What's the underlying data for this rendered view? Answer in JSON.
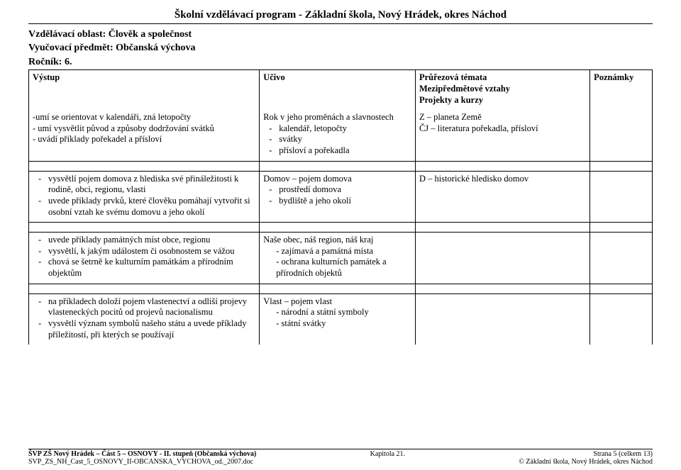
{
  "header": {
    "title": "Školní vzdělávací program  -  Základní škola, Nový Hrádek, okres Náchod"
  },
  "meta": {
    "line1": "Vzdělávací oblast: Člověk a společnost",
    "line2": "Vyučovací předmět: Občanská výchova",
    "line3": "Ročník: 6."
  },
  "cols": {
    "h1": "Výstup",
    "h2": "Učivo",
    "h3a": "Průřezová témata",
    "h3b": "Mezipředmětové vztahy",
    "h3c": "Projekty a kurzy",
    "h4": "Poznámky"
  },
  "r1": {
    "c1a": "-umí se orientovat v kalendáři, zná letopočty",
    "c1b": "- umí vysvětlit původ a způsoby dodržování svátků",
    "c1c": "- uvádí příklady pořekadel a přísloví",
    "c2h": "Rok v jeho proměnách a slavnostech",
    "c2a": "kalendář, letopočty",
    "c2b": "svátky",
    "c2c": "přísloví a pořekadla",
    "c3a": "Z – planeta Země",
    "c3b": "ČJ – literatura pořekadla, přísloví"
  },
  "r2": {
    "c1a": "vysvětlí pojem domova z hlediska své přináležitosti k rodině, obci, regionu, vlasti",
    "c1b": "uvede příklady prvků, které člověku pomáhají vytvořit si osobní vztah ke svému domovu a jeho okolí",
    "c2h": "Domov – pojem domova",
    "c2a": "prostředí domova",
    "c2b": "bydliště a jeho okolí",
    "c3a": "D – historické hledisko domov"
  },
  "r3": {
    "c1a": "uvede příklady památných míst obce, regionu",
    "c1b": "vysvětlí, k jakým událostem či osobnostem se vážou",
    "c1c": "chová se šetrně ke kulturním památkám a přírodním objektům",
    "c2h": "Naše obec, náš region, náš kraj",
    "c2a": "- zajímavá a památná místa",
    "c2b": "- ochrana kulturních památek a přírodních objektů"
  },
  "r4": {
    "c1a": "na příkladech doloží pojem vlastenectví a odliší projevy vlasteneckých pocitů od projevů nacionalismu",
    "c1b": "vysvětlí význam symbolů našeho státu a uvede příklady příležitostí,  při kterých se používají",
    "c2h": "Vlast – pojem vlast",
    "c2a": "- národní a státní symboly",
    "c2b": "- státní svátky"
  },
  "footer": {
    "left1": "ŠVP ZŠ Nový Hrádek – Část 5 – OSNOVY  - II. stupeň (Občanská výchova)",
    "left2": "SVP_ZS_NH_Cast_5_OSNOVY_II-OBCANSKA_VYCHOVA_od._2007.doc",
    "center": "Kapitola 21.",
    "right1": "Strana 5 (celkem 13)",
    "right2": "© Základní škola, Nový Hrádek, okres Náchod"
  }
}
